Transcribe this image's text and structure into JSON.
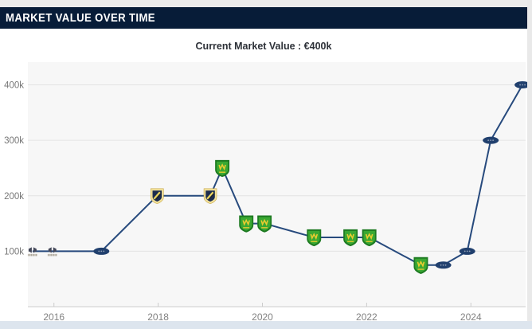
{
  "header": {
    "title": "MARKET VALUE OVER TIME"
  },
  "chart_data": {
    "type": "line",
    "title": "Current Market Value : €400k",
    "xlabel": "",
    "ylabel": "",
    "value_unit": "€ thousand",
    "legend": "none",
    "grid": true,
    "xlim": [
      2015.5,
      2025.05
    ],
    "ylim": [
      0,
      441
    ],
    "x": [
      2015.59,
      2015.97,
      2016.91,
      2017.98,
      2019.0,
      2019.23,
      2019.69,
      2020.04,
      2020.99,
      2021.69,
      2022.05,
      2023.04,
      2023.47,
      2023.93,
      2024.38,
      2024.99
    ],
    "values": [
      100,
      100,
      100,
      200,
      200,
      250,
      150,
      150,
      125,
      125,
      125,
      75,
      75,
      100,
      300,
      400
    ],
    "marker_types": [
      "badge-small",
      "badge-small",
      "oval",
      "shield-yellow",
      "shield-yellow",
      "shield-green",
      "shield-green",
      "shield-green",
      "shield-green",
      "shield-green",
      "shield-green",
      "shield-green",
      "oval",
      "oval",
      "oval",
      "oval"
    ],
    "xticks": [
      {
        "v": 2016,
        "label": "2016"
      },
      {
        "v": 2018,
        "label": "2018"
      },
      {
        "v": 2020,
        "label": "2020"
      },
      {
        "v": 2022,
        "label": "2022"
      },
      {
        "v": 2024,
        "label": "2024"
      }
    ],
    "yticks": [
      {
        "v": 100,
        "label": "100k"
      },
      {
        "v": 200,
        "label": "200k"
      },
      {
        "v": 300,
        "label": "300k"
      },
      {
        "v": 400,
        "label": "400k"
      }
    ],
    "colors": {
      "line": "#274a7d",
      "plot_bg": "#f7f7f7",
      "grid": "#e4e4e4",
      "axis": "#cccccc",
      "tick_label": "#828282",
      "oval_marker": "#21406e",
      "shield_green_border": "#1d7a21",
      "shield_green_fill": "#3aa832",
      "shield_green_emblem": "#e9cb30",
      "shield_yellow_border": "#f1e19b",
      "shield_yellow_fill": "#1c2c4e",
      "shield_yellow_stripe": "#ecd55e",
      "badge_small": "#44485a",
      "badge_small_text": "#a8a296",
      "header_bg": "#071c38"
    }
  }
}
